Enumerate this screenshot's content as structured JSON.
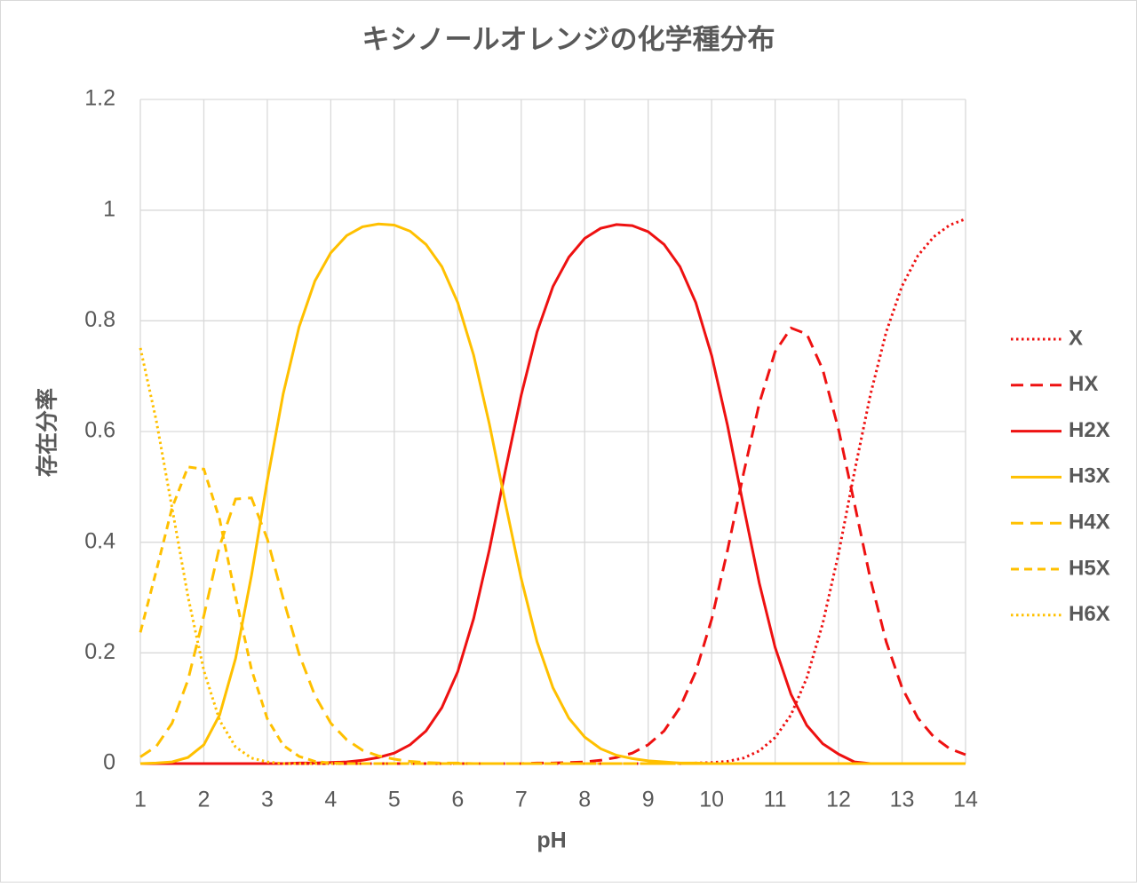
{
  "chart_data": {
    "type": "line",
    "title": "キシノールオレンジの化学種分布",
    "x_label": "pH",
    "y_label": "存在分率",
    "x": [
      1,
      1.25,
      1.5,
      1.75,
      2,
      2.25,
      2.5,
      2.75,
      3,
      3.25,
      3.5,
      3.75,
      4,
      4.25,
      4.5,
      4.75,
      5,
      5.25,
      5.5,
      5.75,
      6,
      6.25,
      6.5,
      6.75,
      7,
      7.25,
      7.5,
      7.75,
      8,
      8.25,
      8.5,
      8.75,
      9,
      9.25,
      9.5,
      9.75,
      10,
      10.25,
      10.5,
      10.75,
      11,
      11.25,
      11.5,
      11.75,
      12,
      12.25,
      12.5,
      12.75,
      13,
      13.25,
      13.5,
      13.75,
      14
    ],
    "xlim": [
      1,
      14
    ],
    "xticks": [
      1,
      2,
      3,
      4,
      5,
      6,
      7,
      8,
      9,
      10,
      11,
      12,
      13,
      14
    ],
    "ylim": [
      0,
      1.2
    ],
    "yticks": [
      0,
      0.2,
      0.4,
      0.6,
      0.8,
      1,
      1.2
    ],
    "grid": true,
    "legend": "right",
    "series": [
      {
        "name": "X",
        "color": "#ee1111",
        "dash": "dotted",
        "values": [
          0,
          0,
          0,
          0,
          0,
          0,
          0,
          0,
          0,
          0,
          0,
          0,
          0,
          0,
          0,
          0,
          0,
          0,
          0,
          0,
          0,
          0,
          0,
          0,
          0,
          0,
          0,
          0,
          0,
          0,
          0,
          0,
          0,
          0,
          0,
          0.001,
          0.002,
          0.004,
          0.01,
          0.023,
          0.047,
          0.088,
          0.155,
          0.253,
          0.38,
          0.527,
          0.666,
          0.78,
          0.863,
          0.918,
          0.952,
          0.973,
          0.984
        ]
      },
      {
        "name": "HX",
        "color": "#ee1111",
        "dash": "dashed",
        "values": [
          0,
          0,
          0,
          0,
          0,
          0,
          0,
          0,
          0,
          0,
          0,
          0,
          0,
          0,
          0,
          0,
          0,
          0,
          0,
          0,
          0,
          0,
          0,
          0,
          0,
          0.001,
          0.001,
          0.002,
          0.003,
          0.006,
          0.011,
          0.019,
          0.034,
          0.059,
          0.101,
          0.166,
          0.261,
          0.385,
          0.523,
          0.651,
          0.744,
          0.787,
          0.776,
          0.712,
          0.603,
          0.47,
          0.334,
          0.22,
          0.137,
          0.082,
          0.048,
          0.027,
          0.016
        ]
      },
      {
        "name": "H2X",
        "color": "#ee1111",
        "dash": "solid",
        "values": [
          0,
          0,
          0,
          0,
          0,
          0,
          0,
          0,
          0,
          0,
          0.001,
          0.001,
          0.002,
          0.003,
          0.006,
          0.011,
          0.019,
          0.034,
          0.059,
          0.101,
          0.166,
          0.262,
          0.387,
          0.529,
          0.666,
          0.78,
          0.862,
          0.915,
          0.949,
          0.967,
          0.974,
          0.972,
          0.961,
          0.938,
          0.898,
          0.833,
          0.737,
          0.611,
          0.466,
          0.326,
          0.21,
          0.125,
          0.069,
          0.036,
          0.017,
          0.003,
          0,
          0,
          0,
          0,
          0,
          0,
          0
        ]
      },
      {
        "name": "H3X",
        "color": "#ffc000",
        "dash": "solid",
        "values": [
          0,
          0.001,
          0.003,
          0.011,
          0.034,
          0.088,
          0.19,
          0.34,
          0.511,
          0.668,
          0.789,
          0.872,
          0.923,
          0.954,
          0.97,
          0.975,
          0.973,
          0.962,
          0.938,
          0.898,
          0.833,
          0.738,
          0.613,
          0.471,
          0.334,
          0.22,
          0.137,
          0.082,
          0.048,
          0.027,
          0.015,
          0.009,
          0.005,
          0.003,
          0.001,
          0.001,
          0,
          0,
          0,
          0,
          0,
          0,
          0,
          0,
          0,
          0,
          0,
          0,
          0,
          0,
          0,
          0,
          0
        ]
      },
      {
        "name": "H4X",
        "color": "#ffc000",
        "dash": "dashed",
        "values": [
          0.012,
          0.031,
          0.073,
          0.151,
          0.267,
          0.393,
          0.478,
          0.48,
          0.406,
          0.298,
          0.198,
          0.123,
          0.073,
          0.043,
          0.024,
          0.014,
          0.008,
          0.004,
          0.002,
          0.001,
          0.001,
          0,
          0,
          0,
          0,
          0,
          0,
          0,
          0,
          0,
          0,
          0,
          0,
          0,
          0,
          0,
          0,
          0,
          0,
          0,
          0,
          0,
          0,
          0,
          0,
          0,
          0,
          0,
          0,
          0,
          0,
          0,
          0
        ]
      },
      {
        "name": "H5X",
        "color": "#ffc000",
        "dash": "short-dashed",
        "values": [
          0.237,
          0.348,
          0.462,
          0.536,
          0.532,
          0.441,
          0.302,
          0.17,
          0.081,
          0.033,
          0.013,
          0.004,
          0.001,
          0,
          0,
          0,
          0,
          0,
          0,
          0,
          0,
          0,
          0,
          0,
          0,
          0,
          0,
          0,
          0,
          0,
          0,
          0,
          0,
          0,
          0,
          0,
          0,
          0,
          0,
          0,
          0,
          0,
          0,
          0,
          0,
          0,
          0,
          0,
          0,
          0,
          0,
          0,
          0
        ]
      },
      {
        "name": "H6X",
        "color": "#ffc000",
        "dash": "dotted",
        "values": [
          0.751,
          0.62,
          0.462,
          0.302,
          0.168,
          0.078,
          0.03,
          0.01,
          0.003,
          0,
          0,
          0,
          0,
          0,
          0,
          0,
          0,
          0,
          0,
          0,
          0,
          0,
          0,
          0,
          0,
          0,
          0,
          0,
          0,
          0,
          0,
          0,
          0,
          0,
          0,
          0,
          0,
          0,
          0,
          0,
          0,
          0,
          0,
          0,
          0,
          0,
          0,
          0,
          0,
          0,
          0,
          0,
          0
        ]
      }
    ]
  }
}
